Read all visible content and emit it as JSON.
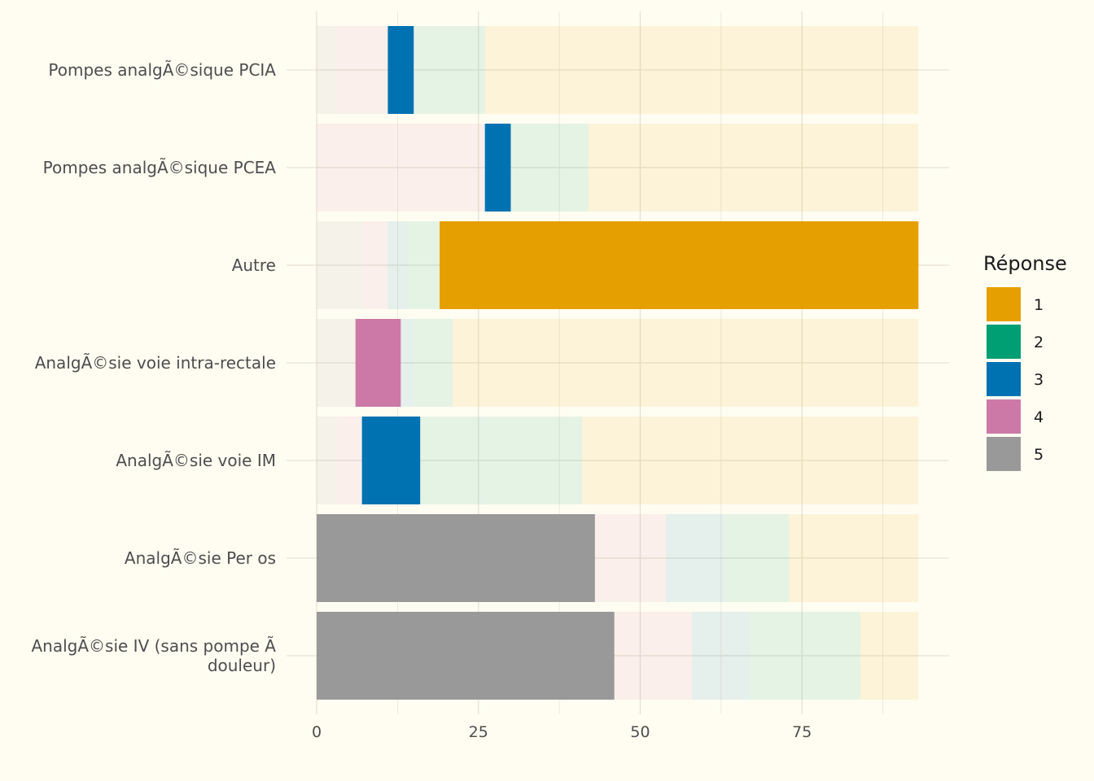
{
  "chart_data": {
    "type": "bar",
    "orientation": "horizontal",
    "stacked": true,
    "categories": [
      "Pompes analgÃ©sique PCIA",
      "Pompes analgÃ©sique PCEA",
      "Autre",
      "AnalgÃ©sie voie intra-rectale",
      "AnalgÃ©sie voie IM",
      "AnalgÃ©sie Per os",
      "AnalgÃ©sie IV (sans pompe Ã\ndouleur)"
    ],
    "series": [
      {
        "name": "5",
        "color": "#999999",
        "values": [
          3,
          0,
          7,
          6,
          3,
          43,
          46
        ]
      },
      {
        "name": "4",
        "color": "#CC79A7",
        "values": [
          8,
          26,
          4,
          7,
          4,
          11,
          12
        ]
      },
      {
        "name": "3",
        "color": "#0072B2",
        "values": [
          4,
          4,
          3,
          2,
          9,
          9,
          9
        ]
      },
      {
        "name": "2",
        "color": "#009E73",
        "values": [
          11,
          12,
          5,
          6,
          25,
          10,
          17
        ]
      },
      {
        "name": "1",
        "color": "#E69F00",
        "values": [
          67,
          51,
          74,
          72,
          52,
          20,
          9
        ]
      }
    ],
    "highlight": [
      {
        "category_index": 0,
        "series": "3"
      },
      {
        "category_index": 1,
        "series": "3"
      },
      {
        "category_index": 2,
        "series": "1"
      },
      {
        "category_index": 3,
        "series": "4"
      },
      {
        "category_index": 4,
        "series": "3"
      },
      {
        "category_index": 5,
        "series": "5"
      },
      {
        "category_index": 6,
        "series": "5"
      }
    ],
    "xlabel": "",
    "ylabel": "",
    "xlim": [
      0,
      93
    ],
    "xticks": [
      0,
      25,
      50,
      75
    ],
    "grid": true,
    "background": "#fffdf2",
    "legend": {
      "title": "Réponse",
      "position": "right",
      "entries": [
        "1",
        "2",
        "3",
        "4",
        "5"
      ]
    }
  }
}
